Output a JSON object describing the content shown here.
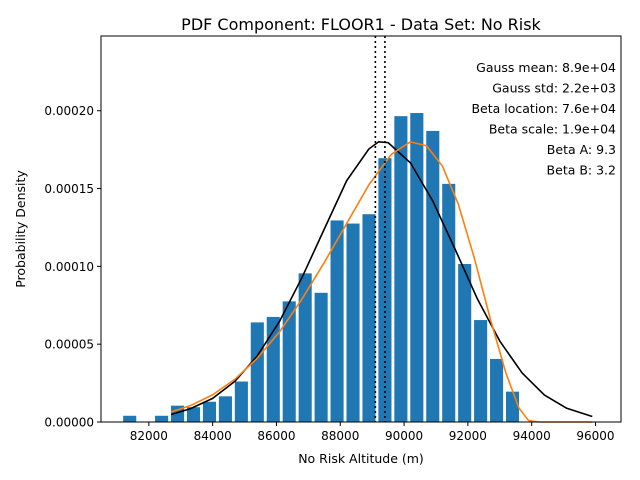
{
  "chart_data": {
    "type": "bar",
    "title": "PDF Component: FLOOR1 - Data Set: No Risk",
    "xlabel": "No Risk Altitude (m)",
    "ylabel": "Probability Density",
    "xlim": [
      80500,
      96800
    ],
    "ylim": [
      0,
      0.000248
    ],
    "x_ticks": [
      82000,
      84000,
      86000,
      88000,
      90000,
      92000,
      94000,
      96000
    ],
    "x_tick_labels": [
      "82000",
      "84000",
      "86000",
      "88000",
      "90000",
      "92000",
      "94000",
      "96000"
    ],
    "y_ticks": [
      0,
      5e-05,
      0.0001,
      0.00015,
      0.0002
    ],
    "y_tick_labels": [
      "0.00000",
      "0.00005",
      "0.00010",
      "0.00015",
      "0.00020"
    ],
    "grid": false,
    "bar_color": "#1f77b4",
    "bar_width": 410,
    "bars": {
      "x": [
        81400,
        82400,
        82900,
        83400,
        83900,
        84400,
        84900,
        85400,
        85900,
        86400,
        86900,
        87400,
        87900,
        88400,
        88900,
        89400,
        89900,
        90400,
        90900,
        91400,
        91900,
        92400,
        92900,
        93400
      ],
      "values": [
        4e-06,
        4e-06,
        1.05e-05,
        9.5e-06,
        1.3e-05,
        1.65e-05,
        2.6e-05,
        6.4e-05,
        6.75e-05,
        7.75e-05,
        9.55e-05,
        8.3e-05,
        0.0001295,
        0.0001275,
        0.0001335,
        0.0001695,
        0.0001965,
        0.0001985,
        0.000187,
        0.000153,
        0.0001015,
        6.55e-05,
        4.05e-05,
        1.95e-05
      ]
    },
    "series": [
      {
        "name": "Gauss",
        "color": "#000000",
        "x": [
          82700,
          83300,
          84000,
          84700,
          85400,
          86100,
          86800,
          87500,
          88200,
          88900,
          89200,
          89500,
          90200,
          90900,
          91600,
          92300,
          93000,
          93700,
          94400,
          95100,
          95900
        ],
        "values": [
          4.8e-06,
          8.5e-06,
          1.52e-05,
          2.62e-05,
          4.25e-05,
          6.48e-05,
          9.28e-05,
          0.000124,
          0.000155,
          0.0001755,
          0.00018,
          0.0001795,
          0.0001665,
          0.000142,
          0.000111,
          7.9e-05,
          5.2e-05,
          3.15e-05,
          1.73e-05,
          8.8e-06,
          3.5e-06
        ]
      },
      {
        "name": "Beta",
        "color": "#ff7f0e",
        "x": [
          82700,
          83300,
          84000,
          84700,
          85400,
          86100,
          86800,
          87500,
          88200,
          88900,
          89600,
          90200,
          90700,
          91200,
          91700,
          92200,
          92700,
          93200,
          93600,
          93900,
          94200,
          95900
        ],
        "values": [
          6.5e-06,
          1.05e-05,
          1.75e-05,
          2.75e-05,
          4.1e-05,
          5.8e-05,
          7.9e-05,
          0.0001025,
          0.0001275,
          0.0001525,
          0.000172,
          0.00018,
          0.0001775,
          0.0001645,
          0.00014,
          0.0001055,
          6.65e-05,
          3.1e-05,
          9e-06,
          1e-06,
          0,
          0
        ]
      }
    ],
    "vlines": [
      {
        "x": 89100,
        "color": "#000000",
        "style": "dotted"
      },
      {
        "x": 89400,
        "color": "#000000",
        "style": "dotted"
      }
    ],
    "annotations": [
      "Gauss mean: 8.9e+04",
      "Gauss std: 2.2e+03",
      "Beta location: 7.6e+04",
      "Beta scale: 1.9e+04",
      "Beta A: 9.3",
      "Beta B: 3.2"
    ]
  }
}
